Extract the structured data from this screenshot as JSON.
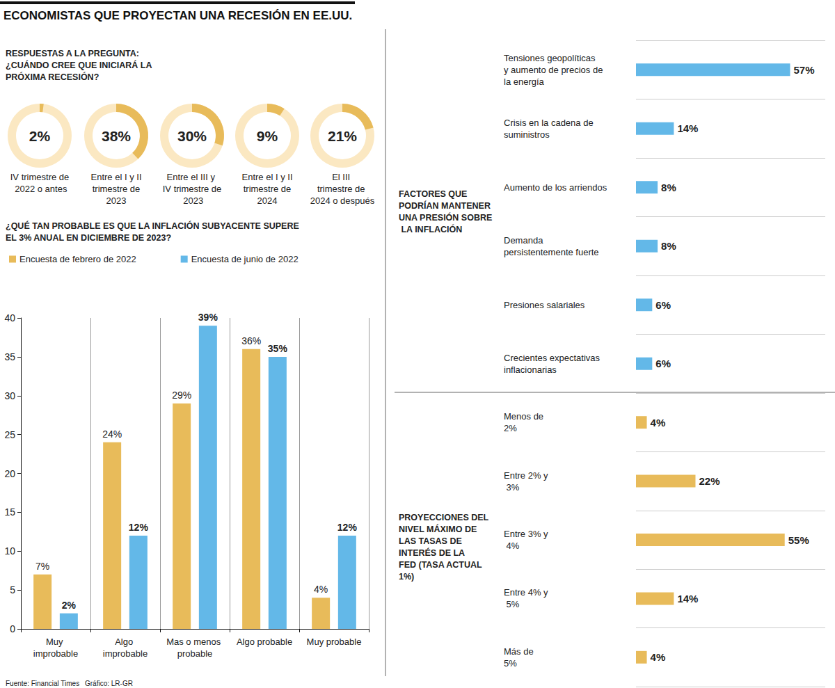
{
  "title": "ECONOMISTAS QUE PROYECTAN UNA RECESIÓN EN EE.UU.",
  "source": "Fuente: Financial Times",
  "credit": "Gráfico: LR-GR",
  "chart_data": [
    {
      "type": "donut",
      "title": "RESPUESTAS A LA PREGUNTA: ¿CUÁNDO CREE QUE INICIARÁ LA PRÓXIMA RECESIÓN?",
      "categories": [
        "IV trimestre de 2022 o antes",
        "Entre el I y II trimestre de 2023",
        "Entre el III y IV trimestre de 2023",
        "Entre el I y II trimestre de 2024",
        "El III trimestre de 2024 o después"
      ],
      "values": [
        2,
        38,
        30,
        9,
        21
      ],
      "value_labels": [
        "2%",
        "38%",
        "30%",
        "9%",
        "21%"
      ],
      "color": "#e8bb5a",
      "ylim": [
        0,
        100
      ],
      "data_labels": true
    },
    {
      "type": "bar",
      "title": "¿QUÉ TAN PROBABLE ES QUE LA INFLACIÓN SUBYACENTE SUPERE EL 3% ANUAL EN DICIEMBRE DE 2023?",
      "categories": [
        "Muy improbable",
        "Algo improbable",
        "Mas o menos probable",
        "Algo probable",
        "Muy probable"
      ],
      "series": [
        {
          "name": "Encuesta de febrero de 2022",
          "color": "#e8bb5a",
          "values": [
            7,
            24,
            29,
            36,
            4
          ],
          "value_labels": [
            "7%",
            "24%",
            "29%",
            "36%",
            "4%"
          ]
        },
        {
          "name": "Encuesta de junio de 2022",
          "color": "#63b8e8",
          "values": [
            2,
            12,
            39,
            35,
            12
          ],
          "value_labels": [
            "2%",
            "12%",
            "39%",
            "35%",
            "12%"
          ]
        }
      ],
      "ylim": [
        0,
        40
      ],
      "yticks": [
        0,
        5,
        10,
        15,
        20,
        25,
        30,
        35,
        40
      ],
      "grid": false,
      "legend": "top-left",
      "data_labels": true
    },
    {
      "type": "bar",
      "orientation": "horizontal",
      "title": "FACTORES QUE PODRÍAN MANTENER UNA PRESIÓN SOBRE LA INFLACIÓN",
      "categories": [
        "Tensiones geopolíticas y aumento de precios de la energía",
        "Crisis en la cadena de suministros",
        "Aumento de los arriendos",
        "Demanda persistentemente fuerte",
        "Presiones salariales",
        "Crecientes expectativas inflacionarias"
      ],
      "values": [
        57,
        14,
        8,
        8,
        6,
        6
      ],
      "value_labels": [
        "57%",
        "14%",
        "8%",
        "8%",
        "6%",
        "6%"
      ],
      "color": "#63b8e8",
      "xlim": [
        0,
        70
      ],
      "grid": false,
      "tick_labels": "y",
      "data_labels": true
    },
    {
      "type": "bar",
      "orientation": "horizontal",
      "title": "PROYECCIONES DEL NIVEL MÁXIMO DE LAS TASAS DE INTERÉS DE LA FED (TASA ACTUAL 1%)",
      "categories": [
        "Menos de 2%",
        "Entre 2% y 3%",
        "Entre 3% y 4%",
        "Entre 4% y 5%",
        "Más de 5%"
      ],
      "values": [
        4,
        22,
        55,
        14,
        4
      ],
      "value_labels": [
        "4%",
        "22%",
        "55%",
        "14%",
        "4%"
      ],
      "color": "#e8bb5a",
      "xlim": [
        0,
        70
      ],
      "grid": false,
      "tick_labels": "y",
      "data_labels": true
    }
  ]
}
